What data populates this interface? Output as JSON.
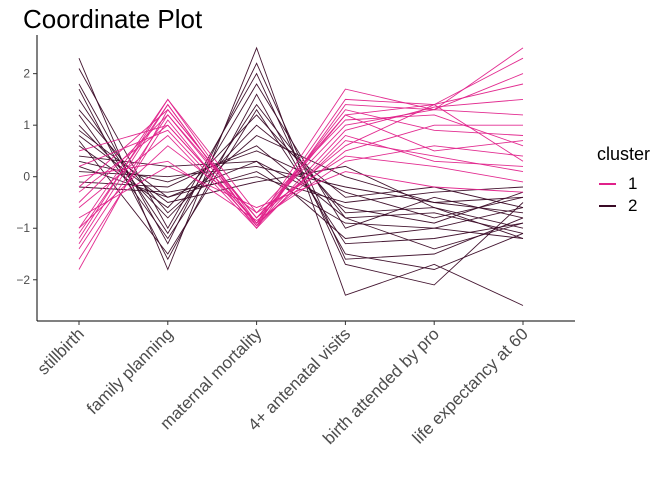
{
  "chart_data": {
    "type": "line",
    "title": "Coordinate Plot",
    "xlabel": "",
    "ylabel": "",
    "categories": [
      "stillbirth",
      "family planning",
      "maternal mortality",
      "4+ antenatal visits",
      "birth attended by pro",
      "life expectancy at 60"
    ],
    "ylim": [
      -2.8,
      2.75
    ],
    "yticks": [
      -2,
      -1,
      0,
      1,
      2
    ],
    "grid": false,
    "legend": {
      "title": "cluster",
      "position": "right"
    },
    "series": [
      {
        "name": "1",
        "color": "#e0218a",
        "lines": [
          [
            -1.2,
            1.5,
            -0.9,
            1.7,
            1.3,
            2.5
          ],
          [
            -1.8,
            1.3,
            -0.8,
            1.2,
            1.4,
            2.3
          ],
          [
            -1.6,
            1.1,
            -1.0,
            1.4,
            1.3,
            2.0
          ],
          [
            -1.3,
            1.4,
            -0.95,
            0.9,
            1.35,
            1.5
          ],
          [
            -0.5,
            1.2,
            -0.8,
            1.0,
            1.3,
            1.2
          ],
          [
            -1.0,
            1.5,
            -0.7,
            1.1,
            1.2,
            0.6
          ],
          [
            -0.3,
            1.0,
            -0.9,
            0.5,
            1.0,
            1.0
          ],
          [
            0.2,
            0.9,
            -0.95,
            0.7,
            0.4,
            0.1
          ],
          [
            0.0,
            0.3,
            -0.85,
            0.3,
            0.6,
            0.4
          ],
          [
            -0.6,
            0.8,
            -1.0,
            0.8,
            0.3,
            0.2
          ],
          [
            -1.4,
            1.2,
            -0.9,
            1.3,
            0.9,
            0.8
          ],
          [
            -1.0,
            0.6,
            -0.7,
            0.4,
            0.2,
            -0.1
          ],
          [
            -0.2,
            1.3,
            -0.8,
            0.6,
            1.4,
            1.8
          ],
          [
            -0.8,
            0.2,
            -0.6,
            0.1,
            -0.2,
            -0.3
          ],
          [
            0.5,
            1.0,
            -0.9,
            1.2,
            0.5,
            0.7
          ],
          [
            -1.1,
            1.4,
            -0.95,
            1.5,
            1.4,
            0.3
          ]
        ]
      },
      {
        "name": "2",
        "color": "#3a0a26",
        "lines": [
          [
            2.3,
            -1.8,
            2.5,
            -2.3,
            -1.7,
            -2.5
          ],
          [
            2.1,
            -1.0,
            2.0,
            -1.7,
            -2.1,
            -0.5
          ],
          [
            1.7,
            -1.6,
            1.6,
            -1.5,
            -1.8,
            -1.1
          ],
          [
            1.2,
            -1.2,
            1.4,
            -0.8,
            -1.4,
            -0.9
          ],
          [
            0.9,
            -0.4,
            0.3,
            -1.2,
            -1.0,
            -0.6
          ],
          [
            0.6,
            -0.6,
            1.2,
            -0.7,
            -0.6,
            -1.2
          ],
          [
            0.3,
            -0.1,
            0.5,
            -0.3,
            -0.8,
            -0.4
          ],
          [
            0.1,
            0.0,
            0.2,
            -0.2,
            -0.5,
            -0.7
          ],
          [
            -0.2,
            -0.3,
            0.0,
            -0.5,
            -0.3,
            -0.2
          ],
          [
            1.5,
            -1.1,
            1.8,
            -1.0,
            -0.4,
            -0.8
          ],
          [
            0.8,
            -0.5,
            -0.1,
            0.2,
            -0.6,
            -1.0
          ],
          [
            0.4,
            0.2,
            0.3,
            -0.6,
            -0.9,
            -0.3
          ],
          [
            1.0,
            -0.8,
            1.0,
            -0.4,
            -0.2,
            -0.6
          ],
          [
            -0.1,
            -0.2,
            0.6,
            -0.8,
            -0.7,
            -1.1
          ],
          [
            0.7,
            -1.5,
            1.3,
            -1.3,
            -1.2,
            -0.9
          ],
          [
            1.3,
            -0.7,
            0.8,
            0.0,
            -0.5,
            -0.4
          ],
          [
            0.2,
            -0.4,
            0.1,
            -0.9,
            -1.0,
            -1.2
          ],
          [
            1.8,
            -1.3,
            2.2,
            -1.6,
            -1.5,
            -0.8
          ]
        ]
      }
    ]
  }
}
